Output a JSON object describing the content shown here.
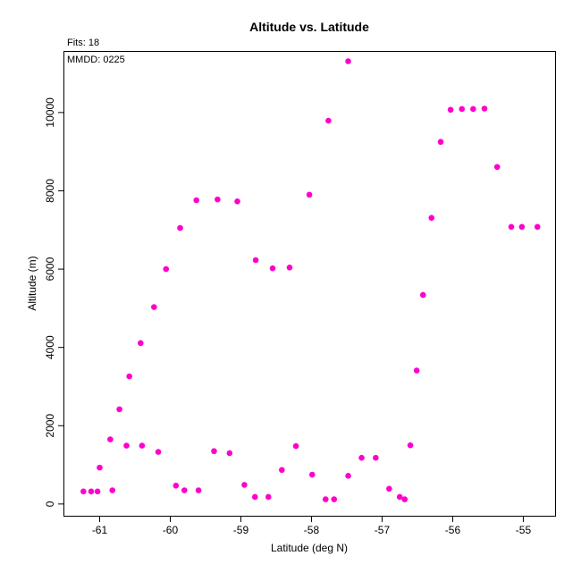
{
  "chart_data": {
    "type": "scatter",
    "title": "Altitude vs. Latitude",
    "annotations": [
      "Fits: 18",
      "MMDD: 0225"
    ],
    "xlabel": "Latitude (deg N)",
    "ylabel": "Altitude (m)",
    "xlim": [
      -61.5,
      -54.55
    ],
    "ylim": [
      -300,
      11550
    ],
    "xticks": [
      -61,
      -60,
      -59,
      -58,
      -57,
      -56,
      -55
    ],
    "yticks": [
      0,
      2000,
      4000,
      6000,
      8000,
      10000
    ],
    "grid": false,
    "marker_color": "#ff00cc",
    "points": [
      [
        -61.23,
        320
      ],
      [
        -61.12,
        320
      ],
      [
        -61.03,
        320
      ],
      [
        -61.0,
        930
      ],
      [
        -60.85,
        1650
      ],
      [
        -60.82,
        350
      ],
      [
        -60.72,
        2420
      ],
      [
        -60.62,
        1490
      ],
      [
        -60.58,
        3260
      ],
      [
        -60.42,
        4110
      ],
      [
        -60.4,
        1490
      ],
      [
        -60.23,
        5030
      ],
      [
        -60.17,
        1330
      ],
      [
        -60.06,
        6000
      ],
      [
        -59.92,
        470
      ],
      [
        -59.86,
        7050
      ],
      [
        -59.8,
        350
      ],
      [
        -59.63,
        7760
      ],
      [
        -59.6,
        350
      ],
      [
        -59.38,
        1350
      ],
      [
        -59.33,
        7780
      ],
      [
        -59.16,
        1300
      ],
      [
        -59.05,
        7730
      ],
      [
        -58.95,
        490
      ],
      [
        -58.8,
        180
      ],
      [
        -58.79,
        6230
      ],
      [
        -58.61,
        180
      ],
      [
        -58.55,
        6020
      ],
      [
        -58.42,
        870
      ],
      [
        -58.31,
        6040
      ],
      [
        -58.22,
        1480
      ],
      [
        -58.03,
        7900
      ],
      [
        -57.99,
        750
      ],
      [
        -57.8,
        120
      ],
      [
        -57.76,
        9790
      ],
      [
        -57.68,
        120
      ],
      [
        -57.48,
        11310
      ],
      [
        -57.48,
        720
      ],
      [
        -57.29,
        1180
      ],
      [
        -57.09,
        1180
      ],
      [
        -56.9,
        390
      ],
      [
        -56.75,
        180
      ],
      [
        -56.68,
        120
      ],
      [
        -56.6,
        1500
      ],
      [
        -56.51,
        3410
      ],
      [
        -56.42,
        5340
      ],
      [
        -56.3,
        7310
      ],
      [
        -56.17,
        9250
      ],
      [
        -56.03,
        10070
      ],
      [
        -55.87,
        10090
      ],
      [
        -55.71,
        10090
      ],
      [
        -55.55,
        10100
      ],
      [
        -55.37,
        8610
      ],
      [
        -55.17,
        7080
      ],
      [
        -55.02,
        7080
      ],
      [
        -54.8,
        7080
      ]
    ]
  }
}
